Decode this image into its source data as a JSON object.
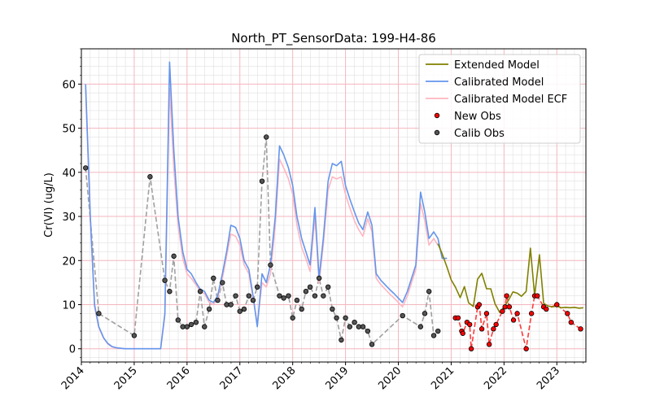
{
  "chart_data": {
    "type": "line",
    "title": "North_PT_SensorData: 199-H4-86",
    "xlabel": "",
    "ylabel": "Cr(VI) (ug/L)",
    "xlim": [
      2014.0,
      2023.55
    ],
    "ylim": [
      -3.0,
      68.0
    ],
    "x_ticks": [
      {
        "value": 2014,
        "label": "2014"
      },
      {
        "value": 2015,
        "label": "2015"
      },
      {
        "value": 2016,
        "label": "2016"
      },
      {
        "value": 2017,
        "label": "2017"
      },
      {
        "value": 2018,
        "label": "2018"
      },
      {
        "value": 2019,
        "label": "2019"
      },
      {
        "value": 2020,
        "label": "2020"
      },
      {
        "value": 2021,
        "label": "2021"
      },
      {
        "value": 2022,
        "label": "2022"
      },
      {
        "value": 2023,
        "label": "2023"
      }
    ],
    "y_ticks": [
      {
        "value": 0,
        "label": "0"
      },
      {
        "value": 10,
        "label": "10"
      },
      {
        "value": 20,
        "label": "20"
      },
      {
        "value": 30,
        "label": "30"
      },
      {
        "value": 40,
        "label": "40"
      },
      {
        "value": 50,
        "label": "50"
      },
      {
        "value": 60,
        "label": "60"
      }
    ],
    "grid": {
      "major": true,
      "minor": true,
      "major_color": "#f4b6bf",
      "minor_color": "#e0e0e0"
    },
    "legend": {
      "position": "top-right"
    },
    "series": [
      {
        "name": "Extended Model",
        "kind": "line",
        "color": "#808000",
        "x": [
          2020.75,
          2020.83,
          2020.92,
          2021.0,
          2021.08,
          2021.17,
          2021.25,
          2021.33,
          2021.42,
          2021.5,
          2021.58,
          2021.67,
          2021.75,
          2021.83,
          2021.92,
          2022.0,
          2022.08,
          2022.17,
          2022.25,
          2022.33,
          2022.42,
          2022.5,
          2022.58,
          2022.67,
          2022.75,
          2022.83,
          2022.92,
          2023.0,
          2023.08,
          2023.17,
          2023.25,
          2023.33,
          2023.42,
          2023.5
        ],
        "y": [
          23.8,
          21.5,
          18.5,
          15.6,
          14.0,
          11.6,
          14.1,
          10.4,
          9.6,
          15.8,
          17.1,
          13.6,
          13.6,
          10.2,
          8.2,
          9.5,
          10.9,
          12.9,
          12.6,
          11.9,
          13.0,
          22.8,
          12.0,
          21.3,
          10.3,
          9.7,
          9.5,
          9.7,
          9.3,
          9.4,
          9.3,
          9.4,
          9.2,
          9.3
        ]
      },
      {
        "name": "Calibrated Model",
        "kind": "line",
        "color": "#6495ed",
        "x": [
          2014.08,
          2014.17,
          2014.25,
          2014.33,
          2014.42,
          2014.5,
          2014.58,
          2014.67,
          2014.75,
          2014.83,
          2014.92,
          2015.0,
          2015.25,
          2015.5,
          2015.58,
          2015.67,
          2015.75,
          2015.83,
          2015.92,
          2016.0,
          2016.08,
          2016.17,
          2016.25,
          2016.33,
          2016.42,
          2016.5,
          2016.58,
          2016.67,
          2016.75,
          2016.83,
          2016.92,
          2017.0,
          2017.08,
          2017.17,
          2017.25,
          2017.33,
          2017.42,
          2017.5,
          2017.58,
          2017.67,
          2017.75,
          2017.83,
          2017.92,
          2018.0,
          2018.08,
          2018.17,
          2018.25,
          2018.33,
          2018.42,
          2018.5,
          2018.58,
          2018.67,
          2018.75,
          2018.83,
          2018.92,
          2019.0,
          2019.08,
          2019.17,
          2019.25,
          2019.33,
          2019.42,
          2019.5,
          2019.58,
          2019.67,
          2019.75,
          2019.83,
          2019.92,
          2020.0,
          2020.08,
          2020.17,
          2020.25,
          2020.33,
          2020.42,
          2020.5,
          2020.58,
          2020.67,
          2020.75,
          2020.83,
          2020.92
        ],
        "y": [
          60.0,
          30.0,
          10.0,
          5.0,
          2.5,
          1.2,
          0.5,
          0.2,
          0.1,
          0.0,
          0.0,
          0.0,
          0.0,
          0.0,
          8.0,
          65.0,
          45.0,
          30.0,
          22.0,
          18.0,
          17.0,
          15.0,
          13.5,
          13.0,
          11.0,
          10.5,
          12.0,
          17.0,
          22.0,
          28.0,
          27.5,
          25.0,
          20.0,
          18.0,
          12.0,
          5.0,
          17.0,
          15.0,
          19.0,
          30.0,
          46.0,
          44.0,
          41.0,
          37.0,
          30.0,
          25.0,
          22.0,
          19.0,
          32.0,
          16.0,
          25.0,
          38.0,
          42.0,
          41.5,
          42.5,
          37.0,
          34.0,
          31.0,
          28.5,
          27.0,
          31.0,
          28.0,
          17.0,
          15.5,
          14.5,
          13.5,
          12.5,
          11.5,
          10.5,
          13.0,
          16.0,
          19.0,
          35.5,
          31.0,
          25.0,
          26.5,
          25.0,
          20.5,
          20.5
        ]
      },
      {
        "name": "Calibrated Model ECF",
        "kind": "line",
        "color": "#ffb6c1",
        "x": [
          2014.08,
          2014.17,
          2014.25,
          2014.33,
          2014.42,
          2014.5,
          2014.58,
          2014.67,
          2014.75,
          2014.83,
          2014.92,
          2015.0,
          2015.25,
          2015.5,
          2015.58,
          2015.67,
          2015.75,
          2015.83,
          2015.92,
          2016.0,
          2016.08,
          2016.17,
          2016.25,
          2016.33,
          2016.42,
          2016.5,
          2016.58,
          2016.67,
          2016.75,
          2016.83,
          2016.92,
          2017.0,
          2017.08,
          2017.17,
          2017.25,
          2017.33,
          2017.42,
          2017.5,
          2017.58,
          2017.67,
          2017.75,
          2017.83,
          2017.92,
          2018.0,
          2018.08,
          2018.17,
          2018.25,
          2018.33,
          2018.42,
          2018.5,
          2018.58,
          2018.67,
          2018.75,
          2018.83,
          2018.92,
          2019.0,
          2019.08,
          2019.17,
          2019.25,
          2019.33,
          2019.42,
          2019.5,
          2019.58,
          2019.67,
          2019.75,
          2019.83,
          2019.92,
          2020.0,
          2020.08,
          2020.17,
          2020.25,
          2020.33,
          2020.42,
          2020.5,
          2020.58,
          2020.67,
          2020.75
        ],
        "y": [
          59.0,
          29.0,
          9.5,
          4.8,
          2.4,
          1.1,
          0.4,
          0.2,
          0.1,
          0.0,
          0.0,
          0.0,
          0.0,
          0.0,
          7.5,
          59.0,
          41.0,
          28.0,
          20.5,
          17.0,
          16.0,
          14.5,
          13.0,
          12.5,
          10.5,
          10.0,
          11.5,
          16.0,
          21.0,
          26.0,
          25.5,
          23.5,
          19.0,
          17.0,
          11.5,
          5.5,
          15.0,
          14.0,
          17.0,
          28.0,
          43.0,
          41.0,
          38.5,
          35.0,
          28.0,
          23.0,
          20.5,
          17.5,
          30.0,
          15.0,
          23.5,
          36.0,
          39.0,
          38.5,
          39.0,
          35.0,
          32.0,
          29.0,
          27.0,
          25.5,
          29.5,
          26.5,
          16.0,
          14.5,
          13.5,
          12.5,
          11.5,
          10.5,
          9.5,
          12.0,
          15.0,
          18.0,
          33.0,
          29.0,
          23.5,
          25.0,
          23.5
        ]
      },
      {
        "name": "New Obs",
        "kind": "scatter",
        "color": "#ff0000",
        "dashed_color": "#ff3b3b",
        "x": [
          2021.08,
          2021.13,
          2021.2,
          2021.22,
          2021.3,
          2021.35,
          2021.38,
          2021.5,
          2021.53,
          2021.58,
          2021.67,
          2021.72,
          2021.8,
          2021.85,
          2021.97,
          2022.02,
          2022.05,
          2022.1,
          2022.18,
          2022.25,
          2022.42,
          2022.52,
          2022.58,
          2022.63,
          2022.75,
          2022.8,
          2023.0,
          2023.2,
          2023.27,
          2023.45
        ],
        "y": [
          7.0,
          7.0,
          4.0,
          3.5,
          6.0,
          5.5,
          0.0,
          9.5,
          10.0,
          4.5,
          8.0,
          1.0,
          4.5,
          5.5,
          8.5,
          9.5,
          12.0,
          9.5,
          6.5,
          8.0,
          0.0,
          8.0,
          12.0,
          12.0,
          9.5,
          9.0,
          10.0,
          8.0,
          6.0,
          4.5
        ]
      },
      {
        "name": "Calib Obs",
        "kind": "scatter",
        "color": "#555555",
        "dashed_color": "#a0a0a0",
        "x": [
          2014.08,
          2014.33,
          2015.0,
          2015.3,
          2015.58,
          2015.67,
          2015.75,
          2015.83,
          2015.92,
          2016.0,
          2016.08,
          2016.17,
          2016.25,
          2016.33,
          2016.42,
          2016.5,
          2016.58,
          2016.67,
          2016.75,
          2016.83,
          2016.92,
          2017.0,
          2017.08,
          2017.17,
          2017.25,
          2017.33,
          2017.42,
          2017.5,
          2017.58,
          2017.75,
          2017.83,
          2017.92,
          2018.0,
          2018.08,
          2018.17,
          2018.25,
          2018.33,
          2018.42,
          2018.5,
          2018.58,
          2018.67,
          2018.75,
          2018.83,
          2018.92,
          2019.0,
          2019.08,
          2019.17,
          2019.25,
          2019.33,
          2019.42,
          2019.5,
          2020.08,
          2020.42,
          2020.5,
          2020.58,
          2020.67,
          2020.75
        ],
        "y": [
          41.0,
          8.0,
          3.0,
          39.0,
          15.5,
          13.0,
          21.0,
          6.5,
          5.0,
          5.0,
          5.5,
          6.0,
          13.0,
          5.0,
          9.0,
          16.0,
          11.0,
          15.0,
          10.0,
          10.0,
          12.0,
          8.5,
          9.0,
          12.0,
          11.0,
          14.0,
          38.0,
          48.0,
          19.0,
          12.0,
          11.5,
          12.0,
          7.0,
          11.0,
          9.0,
          13.0,
          14.0,
          12.0,
          16.0,
          12.0,
          14.0,
          9.0,
          7.0,
          2.0,
          7.0,
          5.0,
          6.0,
          5.0,
          5.0,
          4.0,
          1.0,
          7.5,
          5.0,
          8.0,
          13.0,
          3.0,
          4.0
        ]
      }
    ]
  }
}
